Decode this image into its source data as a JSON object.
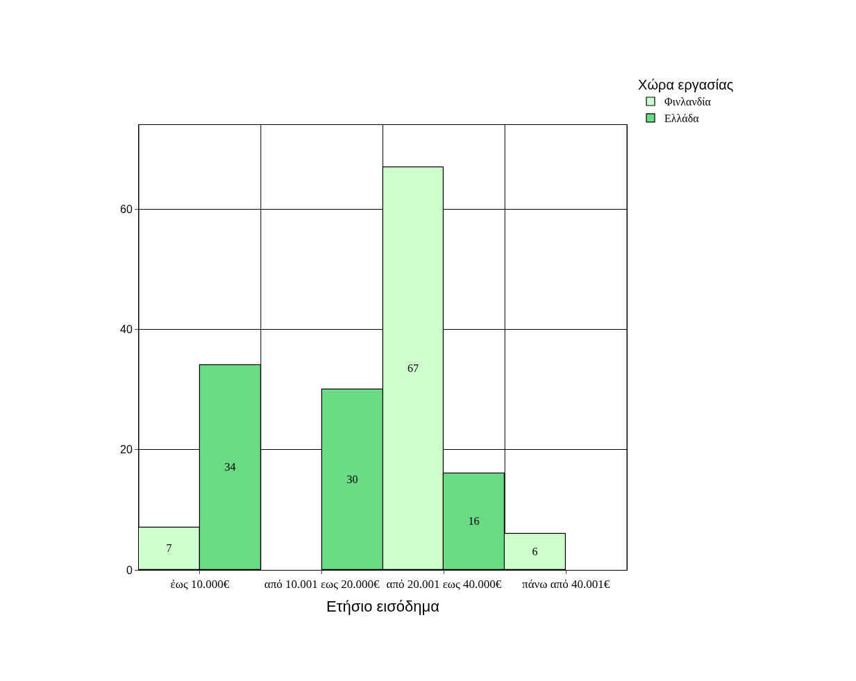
{
  "chart_data": {
    "type": "bar",
    "xlabel": "Ετήσιο εισόδημα",
    "legend_title": "Χώρα εργασίας",
    "categories": [
      "έως 10.000€",
      "από 10.001 εως 20.000€",
      "από 20.001 εως 40.000€",
      "πάνω από 40.001€"
    ],
    "series": [
      {
        "name": "Φινλανδία",
        "color": "#ccffcc",
        "values": [
          7,
          null,
          67,
          6
        ]
      },
      {
        "name": "Ελλάδα",
        "color": "#6adb84",
        "values": [
          34,
          30,
          16,
          null
        ]
      }
    ],
    "ylim": [
      0,
      74
    ],
    "yticks": [
      0,
      20,
      40,
      60
    ],
    "grid": true,
    "legend": "top right",
    "data_labels": true
  }
}
